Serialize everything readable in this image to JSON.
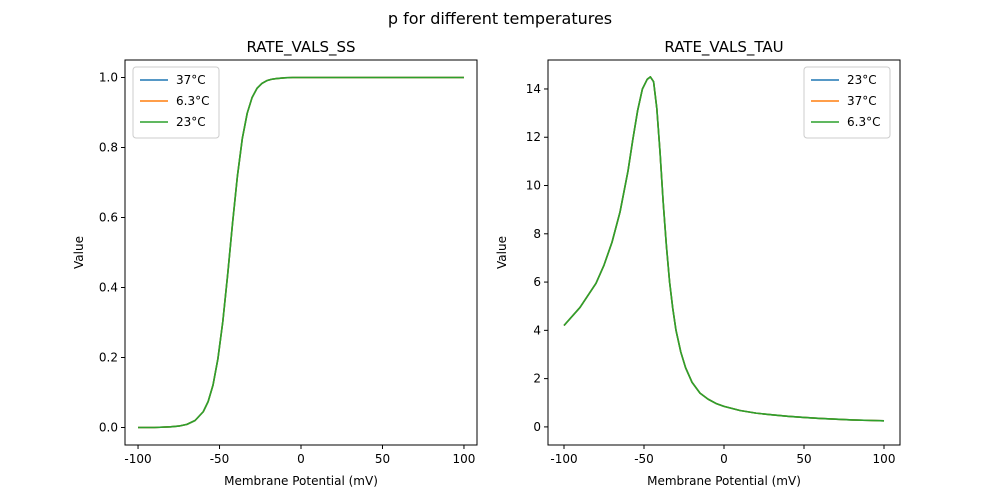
{
  "figure": {
    "suptitle": "p for different temperatures"
  },
  "chart_data": [
    {
      "type": "line",
      "title": "RATE_VALS_SS",
      "xlabel": "Membrane Potential (mV)",
      "ylabel": "Value",
      "xlim": [
        -108,
        108
      ],
      "ylim": [
        -0.05,
        1.05
      ],
      "xticks": [
        -100,
        -50,
        0,
        50,
        100
      ],
      "yticks": [
        0.0,
        0.2,
        0.4,
        0.6,
        0.8,
        1.0
      ],
      "ytick_labels": [
        "0.0",
        "0.2",
        "0.4",
        "0.6",
        "0.8",
        "1.0"
      ],
      "grid": false,
      "legend_position": "top-left",
      "x": [
        -100,
        -90,
        -80,
        -75,
        -70,
        -65,
        -60,
        -57,
        -54,
        -51,
        -48,
        -45,
        -42,
        -39,
        -36,
        -33,
        -30,
        -27,
        -24,
        -21,
        -18,
        -15,
        -10,
        -5,
        0,
        10,
        20,
        40,
        60,
        80,
        100
      ],
      "series": [
        {
          "name": "37°C",
          "color": "#1f77b4",
          "values": [
            0.0,
            0.0,
            0.002,
            0.004,
            0.009,
            0.02,
            0.045,
            0.074,
            0.121,
            0.196,
            0.302,
            0.437,
            0.584,
            0.719,
            0.826,
            0.898,
            0.943,
            0.969,
            0.983,
            0.991,
            0.995,
            0.997,
            0.999,
            1.0,
            1.0,
            1.0,
            1.0,
            1.0,
            1.0,
            1.0,
            1.0
          ]
        },
        {
          "name": "6.3°C",
          "color": "#ff7f0e",
          "values": [
            0.0,
            0.0,
            0.002,
            0.004,
            0.009,
            0.02,
            0.045,
            0.074,
            0.121,
            0.196,
            0.302,
            0.437,
            0.584,
            0.719,
            0.826,
            0.898,
            0.943,
            0.969,
            0.983,
            0.991,
            0.995,
            0.997,
            0.999,
            1.0,
            1.0,
            1.0,
            1.0,
            1.0,
            1.0,
            1.0,
            1.0
          ]
        },
        {
          "name": "23°C",
          "color": "#2ca02c",
          "values": [
            0.0,
            0.0,
            0.002,
            0.004,
            0.009,
            0.02,
            0.045,
            0.074,
            0.121,
            0.196,
            0.302,
            0.437,
            0.584,
            0.719,
            0.826,
            0.898,
            0.943,
            0.969,
            0.983,
            0.991,
            0.995,
            0.997,
            0.999,
            1.0,
            1.0,
            1.0,
            1.0,
            1.0,
            1.0,
            1.0,
            1.0
          ]
        }
      ]
    },
    {
      "type": "line",
      "title": "RATE_VALS_TAU",
      "xlabel": "Membrane Potential (mV)",
      "ylabel": "Value",
      "xlim": [
        -110,
        110
      ],
      "ylim": [
        -0.75,
        15.2
      ],
      "xticks": [
        -100,
        -50,
        0,
        50,
        100
      ],
      "yticks": [
        0,
        2,
        4,
        6,
        8,
        10,
        12,
        14
      ],
      "ytick_labels": [
        "0",
        "2",
        "4",
        "6",
        "8",
        "10",
        "12",
        "14"
      ],
      "grid": false,
      "legend_position": "top-right",
      "x": [
        -100,
        -90,
        -80,
        -75,
        -70,
        -65,
        -60,
        -57,
        -54,
        -51,
        -48,
        -46,
        -44,
        -42,
        -40,
        -38,
        -36,
        -34,
        -32,
        -30,
        -27,
        -24,
        -20,
        -15,
        -10,
        -5,
        0,
        10,
        20,
        30,
        40,
        50,
        60,
        70,
        80,
        90,
        100
      ],
      "series": [
        {
          "name": "23°C",
          "color": "#1f77b4",
          "values": [
            4.2,
            4.95,
            5.95,
            6.7,
            7.65,
            8.9,
            10.6,
            11.9,
            13.1,
            14.0,
            14.4,
            14.5,
            14.3,
            13.2,
            11.4,
            9.3,
            7.5,
            6.0,
            4.9,
            4.0,
            3.1,
            2.45,
            1.85,
            1.4,
            1.15,
            0.97,
            0.85,
            0.68,
            0.57,
            0.5,
            0.44,
            0.39,
            0.35,
            0.32,
            0.29,
            0.27,
            0.25
          ]
        },
        {
          "name": "37°C",
          "color": "#ff7f0e",
          "values": [
            4.2,
            4.95,
            5.95,
            6.7,
            7.65,
            8.9,
            10.6,
            11.9,
            13.1,
            14.0,
            14.4,
            14.5,
            14.3,
            13.2,
            11.4,
            9.3,
            7.5,
            6.0,
            4.9,
            4.0,
            3.1,
            2.45,
            1.85,
            1.4,
            1.15,
            0.97,
            0.85,
            0.68,
            0.57,
            0.5,
            0.44,
            0.39,
            0.35,
            0.32,
            0.29,
            0.27,
            0.25
          ]
        },
        {
          "name": "6.3°C",
          "color": "#2ca02c",
          "values": [
            4.2,
            4.95,
            5.95,
            6.7,
            7.65,
            8.9,
            10.6,
            11.9,
            13.1,
            14.0,
            14.4,
            14.5,
            14.3,
            13.2,
            11.4,
            9.3,
            7.5,
            6.0,
            4.9,
            4.0,
            3.1,
            2.45,
            1.85,
            1.4,
            1.15,
            0.97,
            0.85,
            0.68,
            0.57,
            0.5,
            0.44,
            0.39,
            0.35,
            0.32,
            0.29,
            0.27,
            0.25
          ]
        }
      ]
    }
  ]
}
